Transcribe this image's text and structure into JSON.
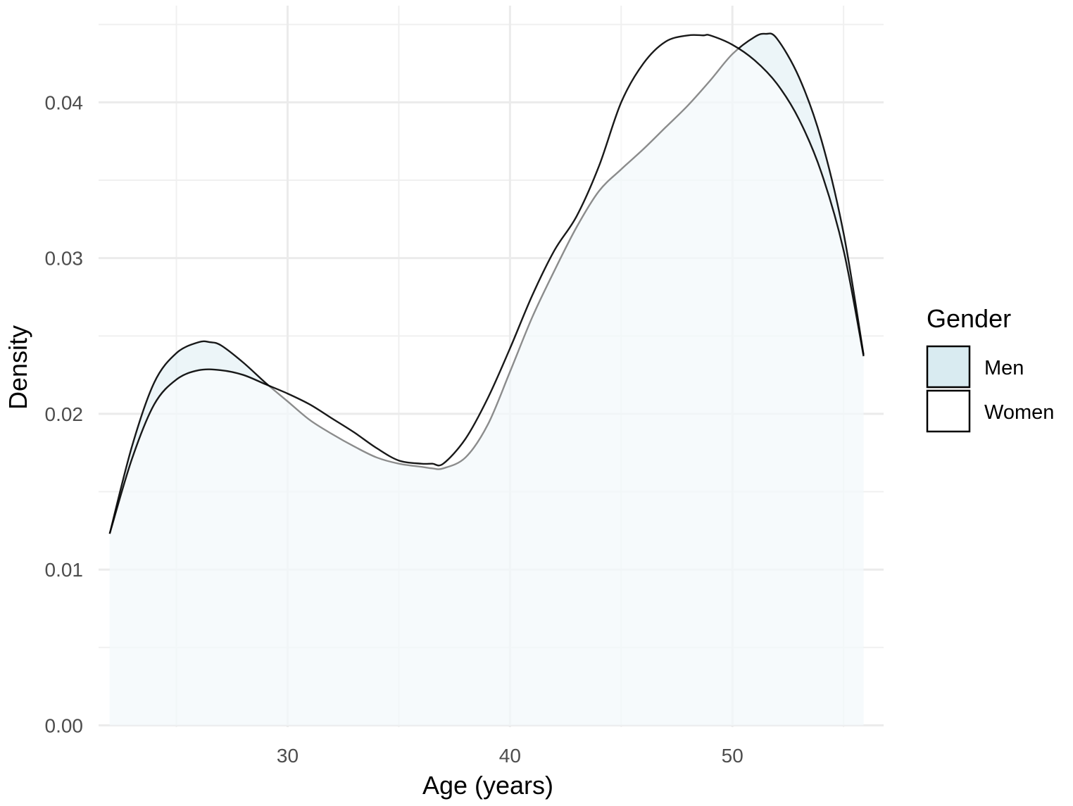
{
  "chart_data": {
    "type": "area",
    "xlabel": "Age (years)",
    "ylabel": "Density",
    "xlim": [
      21.5,
      56.8
    ],
    "ylim": [
      -0.00012,
      0.04621
    ],
    "x_ticks": [
      30,
      40,
      50
    ],
    "x_tick_labels": [
      "30",
      "40",
      "50"
    ],
    "y_ticks": [
      0,
      0.01,
      0.02,
      0.03,
      0.04
    ],
    "y_tick_labels": [
      "0.00",
      "0.01",
      "0.02",
      "0.03",
      "0.04"
    ],
    "x_minor_gridlines": [
      25,
      35,
      45,
      55
    ],
    "y_minor_gridlines": [
      0.005,
      0.015,
      0.025,
      0.035,
      0.045
    ],
    "grid": true,
    "legend": {
      "title": "Gender",
      "position": "right",
      "entries": [
        {
          "label": "Men",
          "color": "#d9ebf1"
        },
        {
          "label": "Women",
          "color": "#ffffff"
        }
      ]
    },
    "series": [
      {
        "name": "Men",
        "color": "#d9ebf1",
        "x": [
          22.0,
          23.0,
          24.0,
          25.0,
          26.0,
          26.5,
          27.0,
          28.0,
          29.0,
          30.0,
          31.0,
          32.0,
          33.0,
          34.0,
          35.0,
          36.0,
          36.5,
          37.0,
          38.0,
          39.0,
          40.0,
          41.0,
          42.0,
          43.0,
          44.0,
          45.0,
          46.0,
          47.0,
          48.0,
          49.0,
          50.0,
          51.0,
          51.5,
          52.0,
          53.0,
          54.0,
          55.0,
          55.9
        ],
        "values": [
          0.0123,
          0.0179,
          0.022,
          0.0239,
          0.0246,
          0.0246,
          0.0244,
          0.0233,
          0.022,
          0.0208,
          0.0196,
          0.0187,
          0.0179,
          0.0172,
          0.0168,
          0.0166,
          0.0165,
          0.0165,
          0.0172,
          0.0193,
          0.0227,
          0.0262,
          0.0292,
          0.032,
          0.0343,
          0.0357,
          0.037,
          0.0384,
          0.0398,
          0.0414,
          0.0431,
          0.0442,
          0.0444,
          0.0441,
          0.0416,
          0.0376,
          0.0316,
          0.0238
        ]
      },
      {
        "name": "Women",
        "color": "#ffffff",
        "x": [
          22.0,
          23.0,
          24.0,
          25.0,
          26.0,
          27.0,
          28.0,
          29.0,
          30.0,
          31.0,
          32.0,
          33.0,
          34.0,
          35.0,
          36.0,
          36.5,
          37.0,
          38.0,
          39.0,
          40.0,
          41.0,
          42.0,
          43.0,
          44.0,
          45.0,
          46.0,
          47.0,
          48.0,
          48.7,
          49.0,
          50.0,
          51.0,
          52.0,
          53.0,
          54.0,
          55.0,
          55.9
        ],
        "values": [
          0.0123,
          0.0171,
          0.0206,
          0.0222,
          0.0228,
          0.0228,
          0.0225,
          0.0219,
          0.0213,
          0.0206,
          0.0197,
          0.0188,
          0.0178,
          0.017,
          0.0168,
          0.0168,
          0.0168,
          0.0184,
          0.021,
          0.0242,
          0.0276,
          0.0305,
          0.0327,
          0.0359,
          0.04,
          0.0425,
          0.0439,
          0.0443,
          0.0443,
          0.0443,
          0.0437,
          0.0427,
          0.0412,
          0.0389,
          0.0355,
          0.0305,
          0.0237
        ]
      }
    ]
  }
}
